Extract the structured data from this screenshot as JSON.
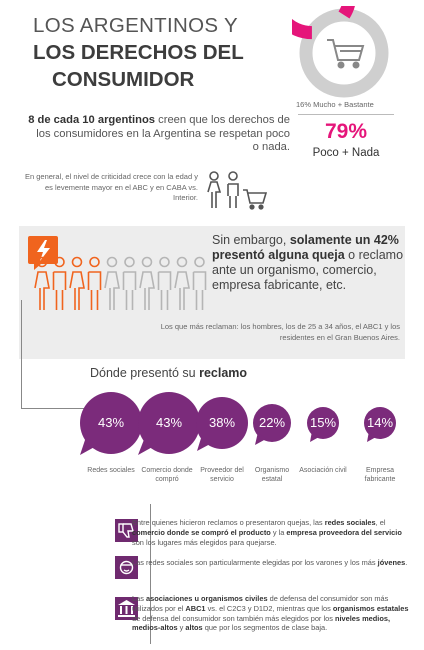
{
  "header": {
    "title_line1": "LOS ARGENTINOS Y",
    "title_line2": "LOS DERECHOS DEL",
    "title_line3": "CONSUMIDOR"
  },
  "donut": {
    "caption": "16% Mucho + Bastante",
    "value_fraction": 0.16,
    "color_main": "#e5157a",
    "color_rest": "#cfcfcf",
    "icon": "shopping-cart-icon"
  },
  "lead": {
    "bold": "8 de cada 10 argentinos",
    "rest": " creen que los derechos de los consumidores en la Argentina se respetan poco o nada."
  },
  "stat": {
    "percent": "79%",
    "label": "Poco + Nada"
  },
  "note_age": "En general, el nivel de criticidad crece con la edad y es levemente mayor en el ABC y en CABA vs. Interior.",
  "complaint": {
    "part1": "Sin embargo, ",
    "bold1": "solamente un 42% presentó alguna queja",
    "part2": " o reclamo ante un organismo, comercio, empresa fabricante, etc.",
    "note": "Los que más reclaman: los hombres, los de 25 a 34 años, el ABC1 y los residentes en el Gran Buenos Aires.",
    "highlight_count": 4,
    "total_people": 10
  },
  "donde": {
    "text": "Dónde presentó su ",
    "bold": "reclamo"
  },
  "bubbles": [
    {
      "pct": "43%",
      "label": "Redes sociales"
    },
    {
      "pct": "43%",
      "label": "Comercio donde compró"
    },
    {
      "pct": "38%",
      "label": "Proveedor del servicio"
    },
    {
      "pct": "22%",
      "label": "Organismo estatal"
    },
    {
      "pct": "15%",
      "label": "Asociación civil"
    },
    {
      "pct": "14%",
      "label": "Empresa fabricante"
    }
  ],
  "info": [
    {
      "icon": "thumbs-down-icon",
      "t1": "Entre quienes hicieron reclamos o presentaron quejas, las ",
      "b1": "redes sociales",
      "t2": ", el ",
      "b2": "comercio donde se compró el producto",
      "t3": " y la ",
      "b3": "empresa proveedora del servicio",
      "t4": " son los lugares más elegidos para quejarse."
    },
    {
      "icon": "young-person-icon",
      "t1": "Las redes sociales son particularmente elegidas por los varones y los más ",
      "b1": "jóvenes",
      "t2": "."
    },
    {
      "icon": "government-building-icon",
      "t1": "Las ",
      "b1": "asociaciones u organismos civiles",
      "t2": " de defensa del consumidor son más utilizados por el ",
      "b2": "ABC1",
      "t3": " vs. el C2C3 y D1D2, mientras que los ",
      "b3": "organismos estatales",
      "t4": " de defensa del consumidor son también más elegidos por los ",
      "b4": "niveles medios, medios-altos",
      "t5": " y ",
      "b5": "altos",
      "t6": " que por los segmentos de clase baja."
    }
  ],
  "colors": {
    "accent_pink": "#e5157a",
    "accent_orange": "#f0641e",
    "bubble_purple": "#7b2b7b",
    "icon_purple": "#6f2a6f"
  }
}
